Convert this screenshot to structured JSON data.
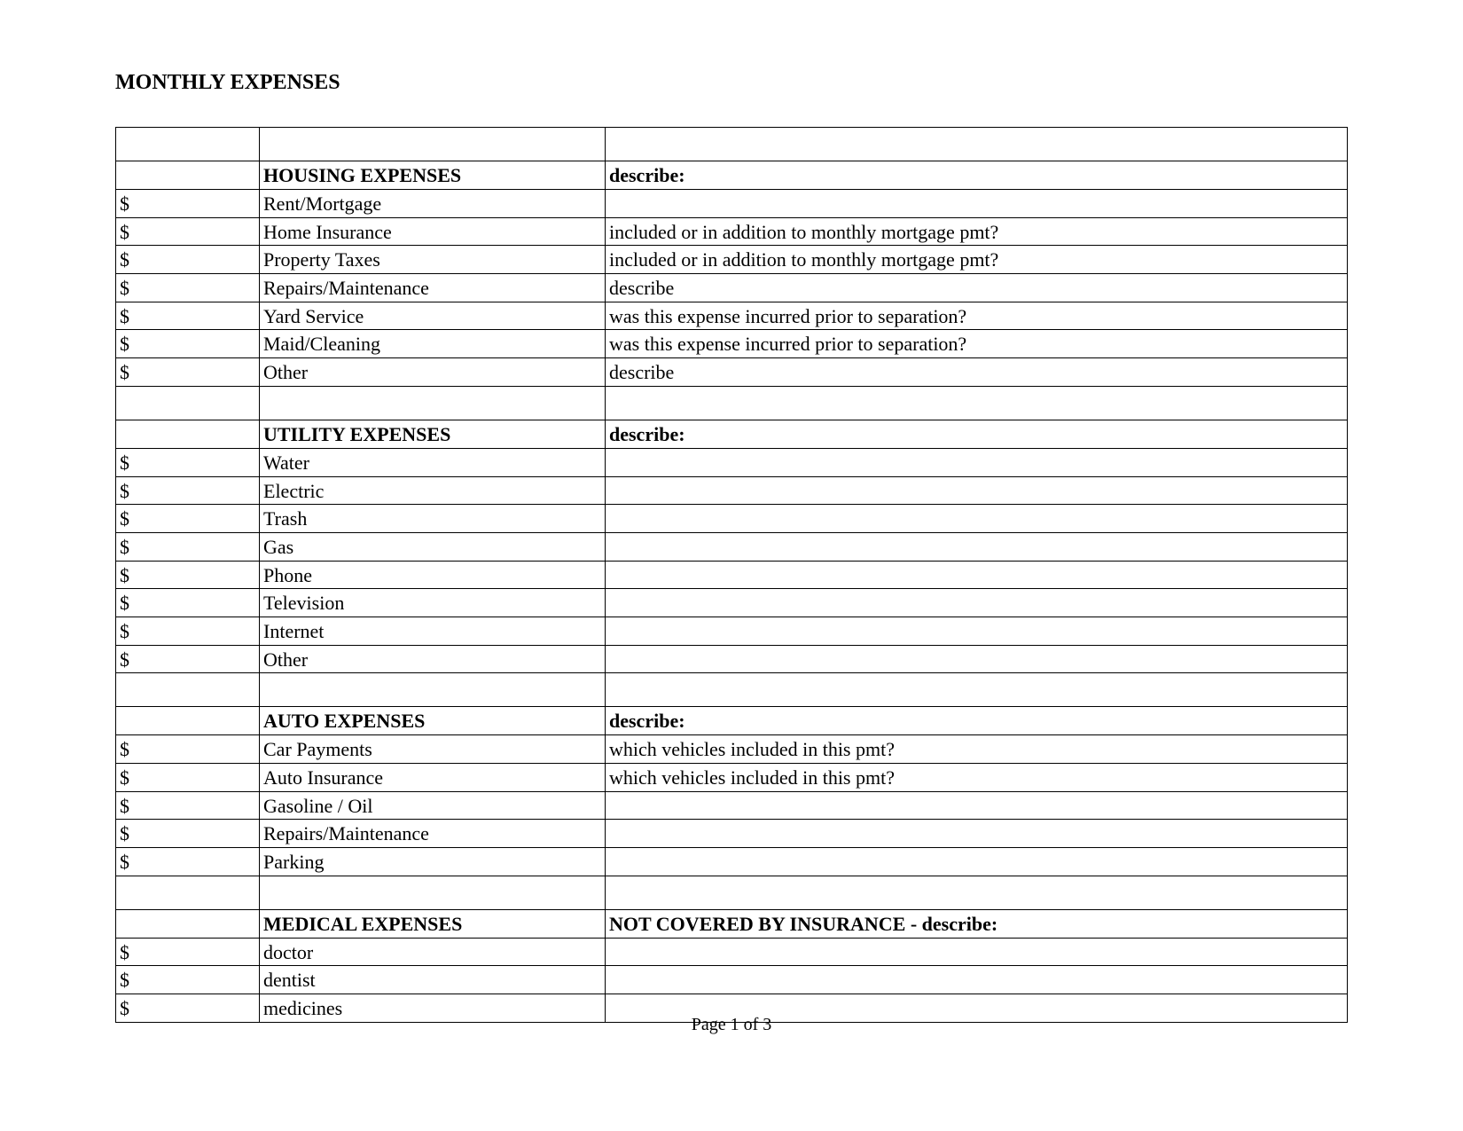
{
  "title": "MONTHLY EXPENSES",
  "footer": "Page 1 of 3",
  "dollarSign": "$",
  "colors": {
    "background": "#ffffff",
    "text": "#000000",
    "border": "#000000"
  },
  "sections": [
    {
      "header": {
        "col2": "HOUSING EXPENSES",
        "col3": "describe:"
      },
      "rows": [
        {
          "col2": "Rent/Mortgage",
          "col3": ""
        },
        {
          "col2": "Home Insurance",
          "col3": "included or in addition to monthly mortgage pmt?"
        },
        {
          "col2": "Property Taxes",
          "col3": "included or in addition to monthly mortgage pmt?"
        },
        {
          "col2": "Repairs/Maintenance",
          "col3": "describe"
        },
        {
          "col2": "Yard Service",
          "col3": "was this expense incurred prior to separation?"
        },
        {
          "col2": "Maid/Cleaning",
          "col3": "was this expense incurred prior to separation?"
        },
        {
          "col2": "Other",
          "col3": "describe"
        }
      ]
    },
    {
      "header": {
        "col2": "UTILITY EXPENSES",
        "col3": "describe:"
      },
      "rows": [
        {
          "col2": "Water",
          "col3": ""
        },
        {
          "col2": "Electric",
          "col3": ""
        },
        {
          "col2": "Trash",
          "col3": ""
        },
        {
          "col2": "Gas",
          "col3": ""
        },
        {
          "col2": "Phone",
          "col3": ""
        },
        {
          "col2": "Television",
          "col3": ""
        },
        {
          "col2": "Internet",
          "col3": ""
        },
        {
          "col2": "Other",
          "col3": ""
        }
      ]
    },
    {
      "header": {
        "col2": "AUTO EXPENSES",
        "col3": "describe:"
      },
      "rows": [
        {
          "col2": "Car Payments",
          "col3": "which vehicles included in this pmt?"
        },
        {
          "col2": "Auto Insurance",
          "col3": "which vehicles included in this pmt?"
        },
        {
          "col2": "Gasoline / Oil",
          "col3": ""
        },
        {
          "col2": "Repairs/Maintenance",
          "col3": ""
        },
        {
          "col2": "Parking",
          "col3": ""
        }
      ]
    },
    {
      "header": {
        "col2": "MEDICAL EXPENSES",
        "col3": "NOT COVERED BY INSURANCE - describe:"
      },
      "rows": [
        {
          "col2": "doctor",
          "col3": ""
        },
        {
          "col2": "dentist",
          "col3": ""
        },
        {
          "col2": "medicines",
          "col3": ""
        }
      ]
    }
  ]
}
